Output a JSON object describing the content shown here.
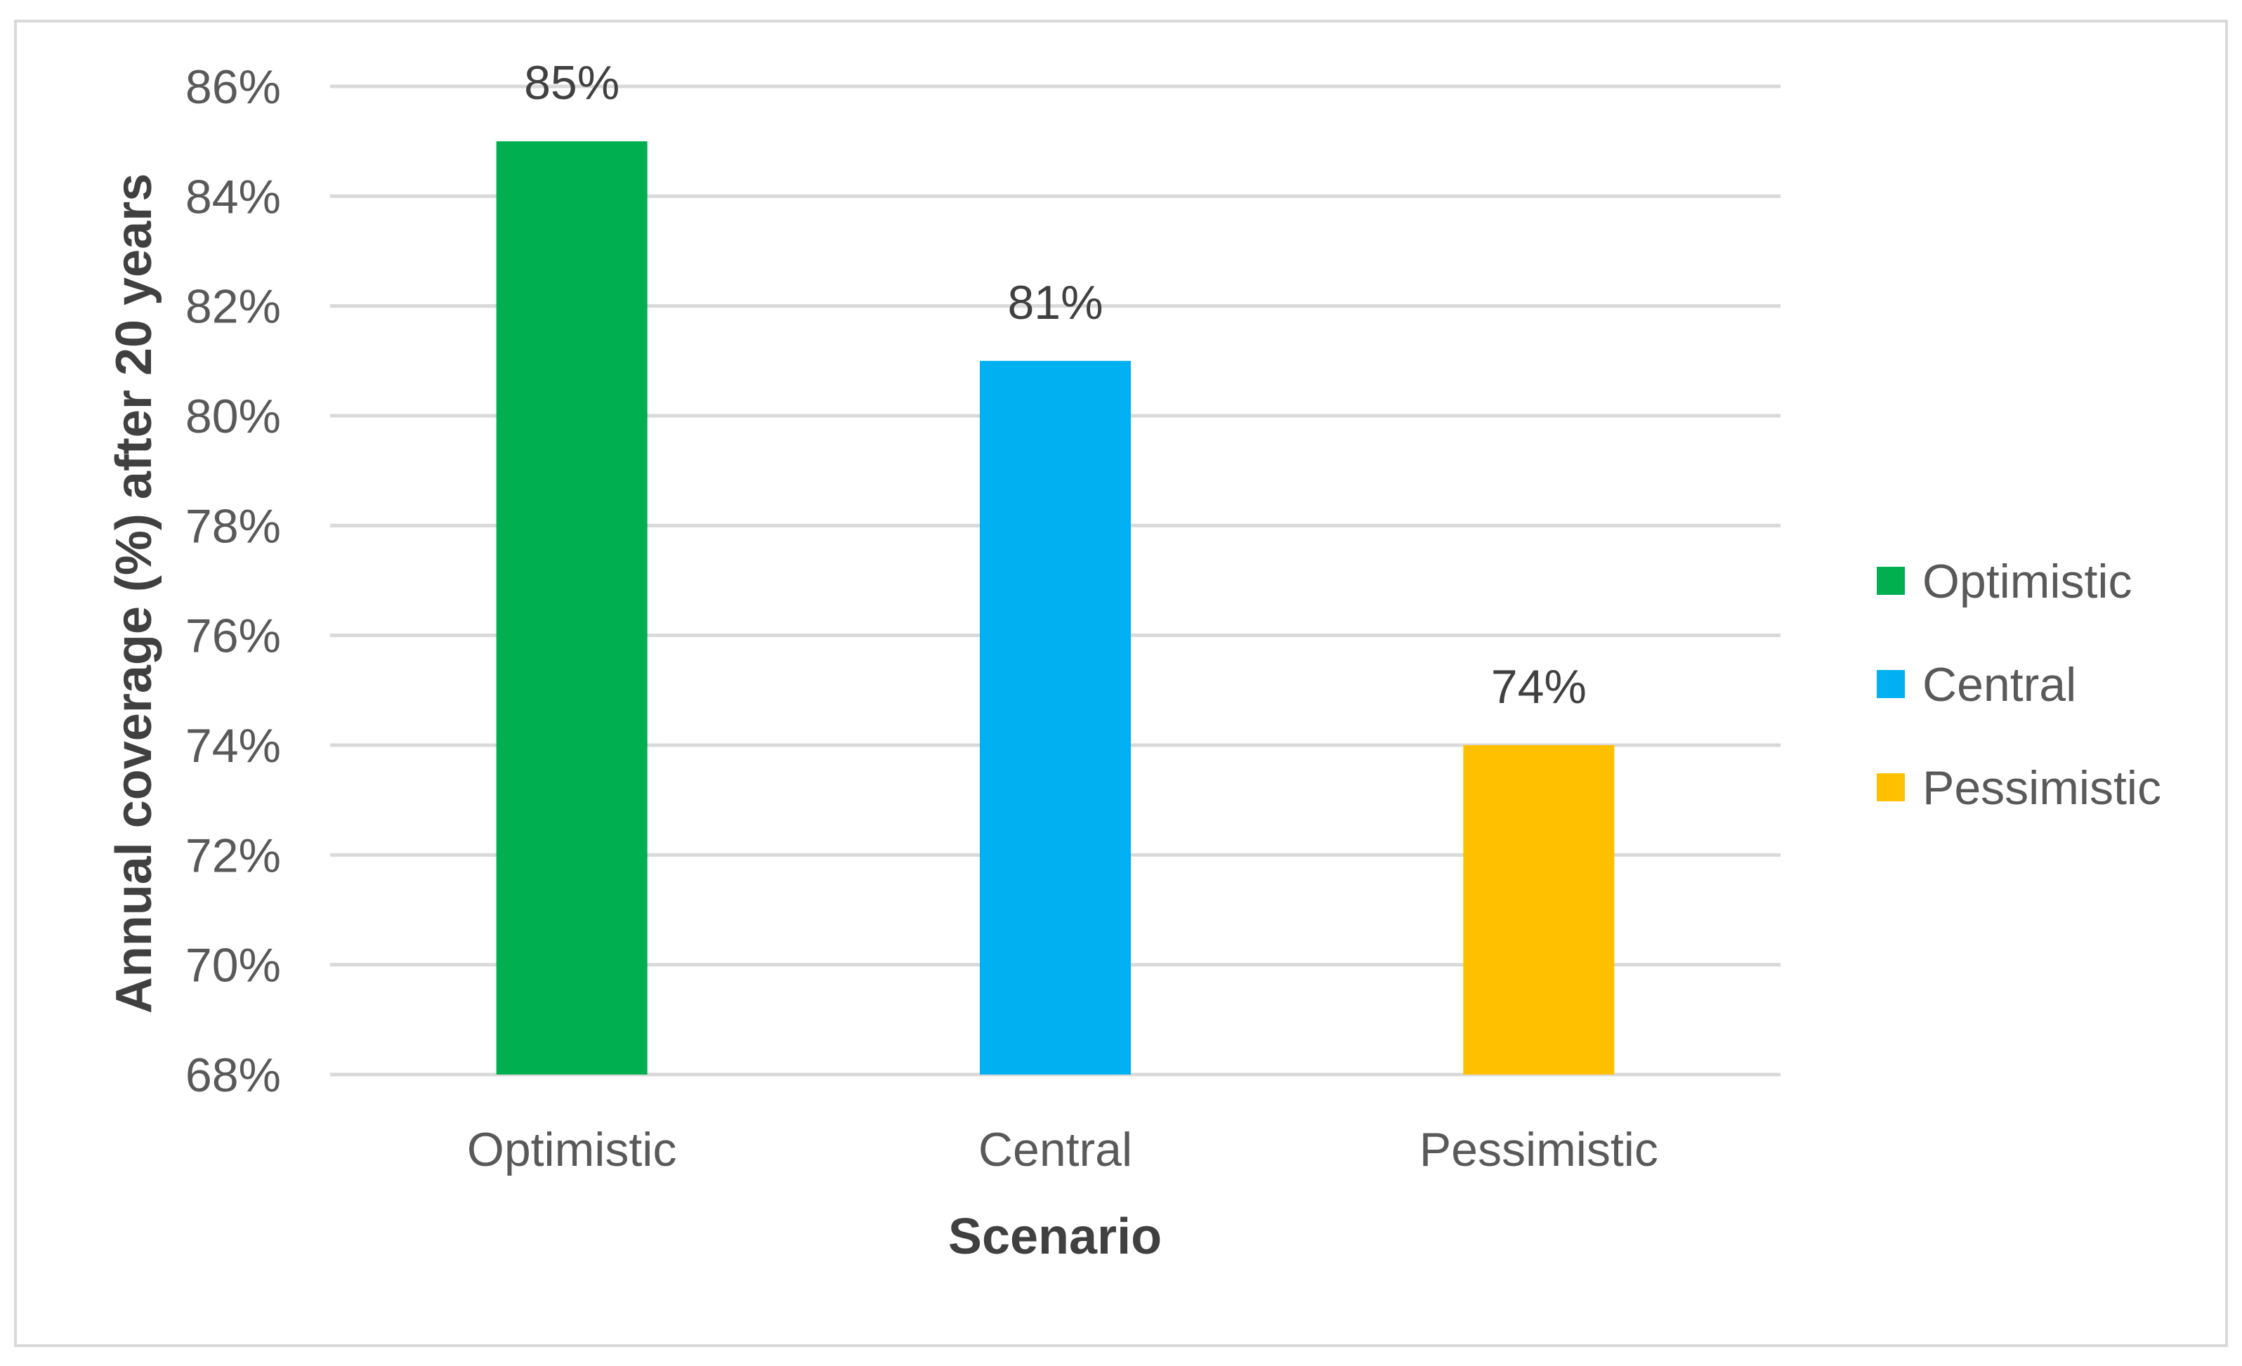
{
  "chart_data": {
    "type": "bar",
    "title": "",
    "xlabel": "Scenario",
    "ylabel": "Annual coverage (%) after 20 years",
    "categories": [
      "Optimistic",
      "Central",
      "Pessimistic"
    ],
    "values": [
      85,
      81,
      74
    ],
    "data_labels": [
      "85%",
      "81%",
      "74%"
    ],
    "colors": [
      "#00b050",
      "#00b0f0",
      "#ffc000"
    ],
    "ylim": [
      68,
      86
    ],
    "yticks": [
      68,
      70,
      72,
      74,
      76,
      78,
      80,
      82,
      84,
      86
    ],
    "ytick_labels": [
      "68%",
      "70%",
      "72%",
      "74%",
      "76%",
      "78%",
      "80%",
      "82%",
      "84%",
      "86%"
    ],
    "grid": true,
    "legend": {
      "position": "right",
      "entries": [
        "Optimistic",
        "Central",
        "Pessimistic"
      ]
    }
  }
}
